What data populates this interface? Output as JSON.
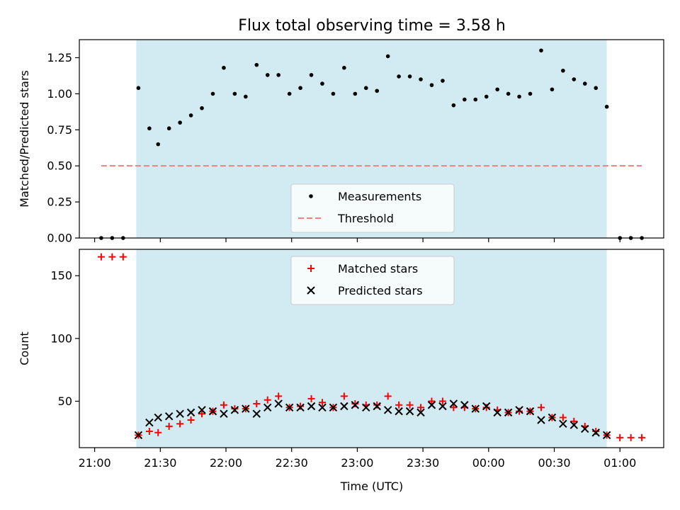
{
  "figure": {
    "title": "Flux total observing time = 3.58 h",
    "xlabel": "Time (UTC)"
  },
  "colors": {
    "shade": "#add8e6",
    "threshold": "#f08080",
    "matched": "#ff0000",
    "predicted": "#000000",
    "measurement": "#000000"
  },
  "chart_data": [
    {
      "type": "scatter",
      "panel": "top",
      "ylabel": "Matched/Predicted stars",
      "xlim": [
        "20:53",
        "01:20"
      ],
      "ylim": [
        0,
        1.375
      ],
      "x_ticks": [
        "21:00",
        "21:30",
        "22:00",
        "22:30",
        "23:00",
        "23:30",
        "00:00",
        "00:30",
        "01:00"
      ],
      "y_ticks": [
        "0.00",
        "0.25",
        "0.50",
        "0.75",
        "1.00",
        "1.25"
      ],
      "shaded_interval": [
        "21:19",
        "00:54"
      ],
      "legend": {
        "position": "lower-center",
        "entries": [
          {
            "label": "Measurements",
            "marker": "dot"
          },
          {
            "label": "Threshold",
            "marker": "dashed-line"
          }
        ]
      },
      "threshold": {
        "value": 0.5,
        "x_range": [
          "21:03",
          "01:10"
        ]
      },
      "series": [
        {
          "name": "Measurements",
          "points": [
            [
              "21:03",
              0.0
            ],
            [
              "21:08",
              0.0
            ],
            [
              "21:13",
              0.0
            ],
            [
              "21:20",
              1.04
            ],
            [
              "21:25",
              0.76
            ],
            [
              "21:29",
              0.65
            ],
            [
              "21:34",
              0.76
            ],
            [
              "21:39",
              0.8
            ],
            [
              "21:44",
              0.85
            ],
            [
              "21:49",
              0.9
            ],
            [
              "21:54",
              1.0
            ],
            [
              "21:59",
              1.18
            ],
            [
              "22:04",
              1.0
            ],
            [
              "22:09",
              0.98
            ],
            [
              "22:14",
              1.2
            ],
            [
              "22:19",
              1.13
            ],
            [
              "22:24",
              1.13
            ],
            [
              "22:29",
              1.0
            ],
            [
              "22:34",
              1.04
            ],
            [
              "22:39",
              1.13
            ],
            [
              "22:44",
              1.07
            ],
            [
              "22:49",
              1.0
            ],
            [
              "22:54",
              1.18
            ],
            [
              "22:59",
              1.0
            ],
            [
              "23:04",
              1.04
            ],
            [
              "23:09",
              1.02
            ],
            [
              "23:14",
              1.26
            ],
            [
              "23:19",
              1.12
            ],
            [
              "23:24",
              1.12
            ],
            [
              "23:29",
              1.1
            ],
            [
              "23:34",
              1.06
            ],
            [
              "23:39",
              1.09
            ],
            [
              "23:44",
              0.92
            ],
            [
              "23:49",
              0.96
            ],
            [
              "23:54",
              0.96
            ],
            [
              "23:59",
              0.98
            ],
            [
              "00:04",
              1.03
            ],
            [
              "00:09",
              1.0
            ],
            [
              "00:14",
              0.98
            ],
            [
              "00:19",
              1.0
            ],
            [
              "00:24",
              1.3
            ],
            [
              "00:29",
              1.03
            ],
            [
              "00:34",
              1.16
            ],
            [
              "00:39",
              1.1
            ],
            [
              "00:44",
              1.07
            ],
            [
              "00:49",
              1.04
            ],
            [
              "00:54",
              0.91
            ],
            [
              "01:00",
              0.0
            ],
            [
              "01:05",
              0.0
            ],
            [
              "01:10",
              0.0
            ]
          ]
        }
      ]
    },
    {
      "type": "scatter",
      "panel": "bottom",
      "ylabel": "Count",
      "xlim": [
        "20:53",
        "01:20"
      ],
      "ylim": [
        13,
        171
      ],
      "x_ticks": [
        "21:00",
        "21:30",
        "22:00",
        "22:30",
        "23:00",
        "23:30",
        "00:00",
        "00:30",
        "01:00"
      ],
      "y_ticks": [
        "50",
        "100",
        "150"
      ],
      "shaded_interval": [
        "21:19",
        "00:54"
      ],
      "legend": {
        "position": "upper-center",
        "entries": [
          {
            "label": "Matched stars",
            "marker": "plus"
          },
          {
            "label": "Predicted stars",
            "marker": "x"
          }
        ]
      },
      "series": [
        {
          "name": "Matched stars",
          "points": [
            [
              "21:03",
              165
            ],
            [
              "21:08",
              165
            ],
            [
              "21:13",
              165
            ],
            [
              "21:20",
              23
            ],
            [
              "21:25",
              26
            ],
            [
              "21:29",
              25
            ],
            [
              "21:34",
              30
            ],
            [
              "21:39",
              32
            ],
            [
              "21:44",
              35
            ],
            [
              "21:49",
              40
            ],
            [
              "21:54",
              42
            ],
            [
              "21:59",
              47
            ],
            [
              "22:04",
              44
            ],
            [
              "22:09",
              44
            ],
            [
              "22:14",
              48
            ],
            [
              "22:19",
              51
            ],
            [
              "22:24",
              54
            ],
            [
              "22:29",
              45
            ],
            [
              "22:34",
              46
            ],
            [
              "22:39",
              52
            ],
            [
              "22:44",
              49
            ],
            [
              "22:49",
              45
            ],
            [
              "22:54",
              54
            ],
            [
              "22:59",
              48
            ],
            [
              "23:04",
              47
            ],
            [
              "23:09",
              47
            ],
            [
              "23:14",
              54
            ],
            [
              "23:19",
              47
            ],
            [
              "23:24",
              47
            ],
            [
              "23:29",
              45
            ],
            [
              "23:34",
              50
            ],
            [
              "23:39",
              50
            ],
            [
              "23:44",
              45
            ],
            [
              "23:49",
              45
            ],
            [
              "23:54",
              44
            ],
            [
              "23:59",
              45
            ],
            [
              "00:04",
              43
            ],
            [
              "00:09",
              41
            ],
            [
              "00:14",
              42
            ],
            [
              "00:19",
              42
            ],
            [
              "00:24",
              45
            ],
            [
              "00:29",
              37
            ],
            [
              "00:34",
              37
            ],
            [
              "00:39",
              34
            ],
            [
              "00:44",
              30
            ],
            [
              "00:49",
              26
            ],
            [
              "00:54",
              23
            ],
            [
              "01:00",
              21
            ],
            [
              "01:05",
              21
            ],
            [
              "01:10",
              21
            ]
          ]
        },
        {
          "name": "Predicted stars",
          "points": [
            [
              "21:20",
              23
            ],
            [
              "21:25",
              33
            ],
            [
              "21:29",
              37
            ],
            [
              "21:34",
              38
            ],
            [
              "21:39",
              40
            ],
            [
              "21:44",
              41
            ],
            [
              "21:49",
              43
            ],
            [
              "21:54",
              42
            ],
            [
              "21:59",
              40
            ],
            [
              "22:04",
              43
            ],
            [
              "22:09",
              44
            ],
            [
              "22:14",
              40
            ],
            [
              "22:19",
              45
            ],
            [
              "22:24",
              48
            ],
            [
              "22:29",
              45
            ],
            [
              "22:34",
              45
            ],
            [
              "22:39",
              46
            ],
            [
              "22:44",
              45
            ],
            [
              "22:49",
              45
            ],
            [
              "22:54",
              46
            ],
            [
              "22:59",
              47
            ],
            [
              "23:04",
              45
            ],
            [
              "23:09",
              46
            ],
            [
              "23:14",
              43
            ],
            [
              "23:19",
              42
            ],
            [
              "23:24",
              42
            ],
            [
              "23:29",
              41
            ],
            [
              "23:34",
              47
            ],
            [
              "23:39",
              46
            ],
            [
              "23:44",
              48
            ],
            [
              "23:49",
              47
            ],
            [
              "23:54",
              44
            ],
            [
              "23:59",
              46
            ],
            [
              "00:04",
              41
            ],
            [
              "00:09",
              41
            ],
            [
              "00:14",
              43
            ],
            [
              "00:19",
              42
            ],
            [
              "00:24",
              35
            ],
            [
              "00:29",
              37
            ],
            [
              "00:34",
              32
            ],
            [
              "00:39",
              31
            ],
            [
              "00:44",
              28
            ],
            [
              "00:49",
              25
            ],
            [
              "00:54",
              23
            ]
          ]
        }
      ]
    }
  ]
}
